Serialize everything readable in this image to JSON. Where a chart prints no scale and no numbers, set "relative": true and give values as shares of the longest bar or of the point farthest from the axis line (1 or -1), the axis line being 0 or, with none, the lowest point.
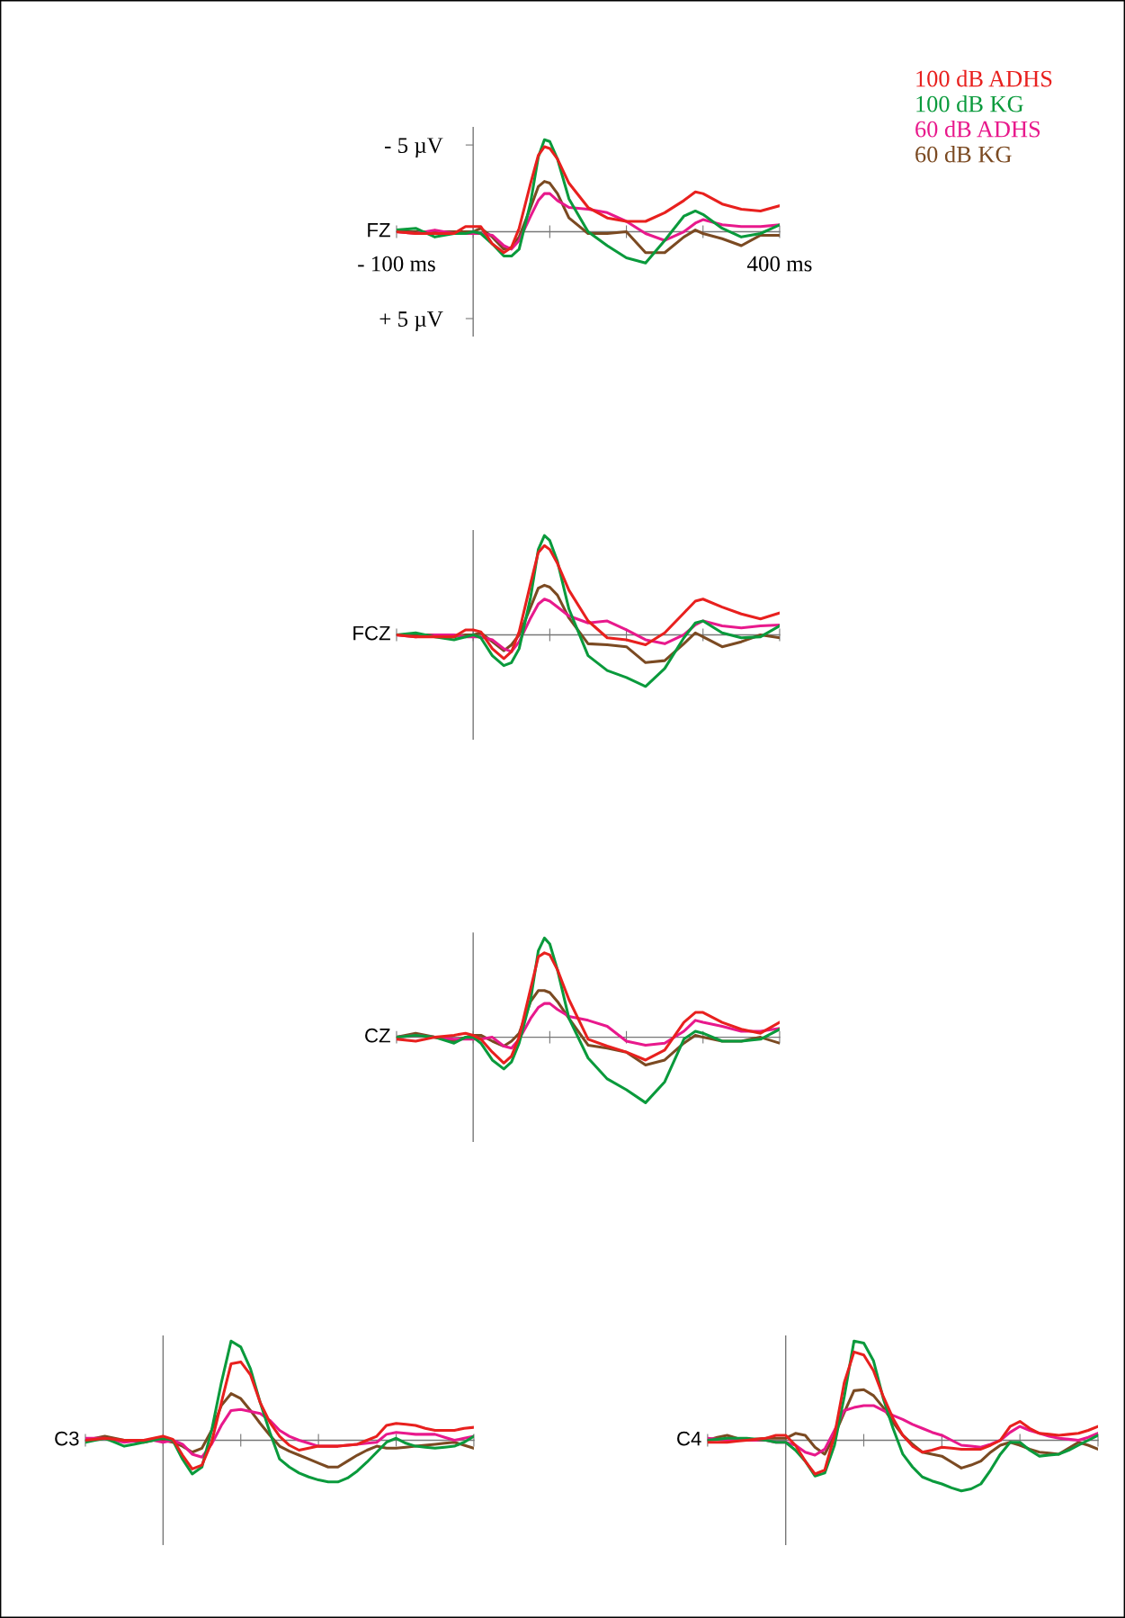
{
  "chart_data": [
    {
      "type": "line",
      "annotations": [
        "FZ"
      ],
      "legend": "top right",
      "x": [
        -100,
        -75,
        -50,
        -25,
        -10,
        0,
        10,
        25,
        40,
        50,
        60,
        75,
        85,
        93,
        100,
        110,
        125,
        150,
        175,
        200,
        225,
        250,
        275,
        290,
        300,
        325,
        350,
        375,
        400
      ],
      "xlim": [
        -100,
        400
      ],
      "ylim": [
        6,
        -6
      ],
      "xticks": [
        {
          "value": -100,
          "label": "- 100 ms"
        },
        {
          "value": 0,
          "label": null
        },
        {
          "value": 100,
          "label": null
        },
        {
          "value": 200,
          "label": null
        },
        {
          "value": 300,
          "label": null
        },
        {
          "value": 400,
          "label": "400 ms"
        }
      ],
      "yticks": [
        {
          "value": -5,
          "label": "- 5 µV"
        },
        {
          "value": 5,
          "label": "+ 5 µV"
        }
      ],
      "series": [
        {
          "name": "100 dB ADHS",
          "color": "#e8201e",
          "values": [
            0,
            0.1,
            0.1,
            0.1,
            -0.3,
            -0.3,
            -0.3,
            0.7,
            1.2,
            0.9,
            -0.2,
            -2.8,
            -4.4,
            -4.9,
            -4.8,
            -4.2,
            -2.8,
            -1.4,
            -0.8,
            -0.6,
            -0.6,
            -1.1,
            -1.8,
            -2.3,
            -2.2,
            -1.6,
            -1.3,
            -1.2,
            -1.5
          ]
        },
        {
          "name": "100 dB KG",
          "color": "#0a9a3c",
          "values": [
            -0.1,
            -0.2,
            0.3,
            0.1,
            0.1,
            0,
            0.1,
            0.7,
            1.4,
            1.4,
            1.0,
            -1.7,
            -4.3,
            -5.3,
            -5.2,
            -4.2,
            -1.9,
            0,
            0.8,
            1.5,
            1.8,
            0.5,
            -0.9,
            -1.2,
            -1.0,
            -0.2,
            0.3,
            0.1,
            -0.4
          ]
        },
        {
          "name": "60 dB ADHS",
          "color": "#e8198c",
          "values": [
            0,
            0.1,
            -0.1,
            0.1,
            0.1,
            0.1,
            0.1,
            0.2,
            0.8,
            1.0,
            0.5,
            -0.9,
            -1.8,
            -2.2,
            -2.2,
            -1.8,
            -1.4,
            -1.3,
            -1.1,
            -0.6,
            0.1,
            0.5,
            0,
            -0.5,
            -0.7,
            -0.4,
            -0.3,
            -0.3,
            -0.4
          ]
        },
        {
          "name": "60 dB KG",
          "color": "#7b4a22",
          "values": [
            0,
            0,
            0,
            0,
            0,
            0,
            -0.2,
            0.3,
            1.0,
            0.9,
            0.3,
            -1.4,
            -2.6,
            -2.9,
            -2.8,
            -2.2,
            -0.8,
            0.1,
            0.1,
            0,
            1.2,
            1.2,
            0.3,
            -0.1,
            0.1,
            0.4,
            0.8,
            0.2,
            0.2
          ]
        }
      ]
    },
    {
      "type": "line",
      "annotations": [
        "FCZ"
      ],
      "relative": true,
      "tick_labels": false,
      "x": [
        -100,
        -75,
        -50,
        -25,
        -10,
        0,
        10,
        25,
        40,
        50,
        60,
        75,
        85,
        93,
        100,
        110,
        125,
        150,
        175,
        200,
        225,
        250,
        275,
        290,
        300,
        325,
        350,
        375,
        400
      ],
      "xlim": [
        -100,
        400
      ],
      "xticks": [
        -100,
        0,
        100,
        200,
        300,
        400
      ],
      "series": [
        {
          "color": "#e8201e",
          "values": [
            0,
            -0.02,
            -0.02,
            -0.02,
            0.05,
            0.05,
            0.03,
            -0.14,
            -0.24,
            -0.17,
            0.03,
            0.52,
            0.83,
            0.9,
            0.86,
            0.72,
            0.45,
            0.14,
            -0.03,
            -0.05,
            -0.1,
            0.02,
            0.22,
            0.34,
            0.36,
            0.28,
            0.21,
            0.16,
            0.22
          ]
        },
        {
          "color": "#0a9a3c",
          "values": [
            0,
            0.02,
            -0.02,
            -0.05,
            -0.02,
            0,
            -0.03,
            -0.21,
            -0.31,
            -0.28,
            -0.14,
            0.38,
            0.86,
            1,
            0.95,
            0.74,
            0.26,
            -0.21,
            -0.36,
            -0.43,
            -0.52,
            -0.34,
            -0.03,
            0.12,
            0.14,
            0.02,
            -0.03,
            -0.02,
            0.09
          ]
        },
        {
          "color": "#e8198c",
          "values": [
            0,
            -0.02,
            0,
            0,
            -0.02,
            -0.02,
            -0.02,
            -0.05,
            -0.14,
            -0.17,
            -0.07,
            0.17,
            0.31,
            0.36,
            0.34,
            0.28,
            0.19,
            0.12,
            0.14,
            0.05,
            -0.05,
            -0.09,
            0,
            0.1,
            0.14,
            0.09,
            0.07,
            0.09,
            0.1
          ]
        },
        {
          "color": "#7b4a22",
          "values": [
            0,
            0,
            0,
            -0.02,
            0,
            0,
            0.02,
            -0.07,
            -0.16,
            -0.1,
            0,
            0.28,
            0.47,
            0.5,
            0.48,
            0.4,
            0.17,
            -0.09,
            -0.1,
            -0.12,
            -0.28,
            -0.26,
            -0.09,
            0.02,
            -0.02,
            -0.12,
            -0.07,
            0,
            -0.03
          ]
        }
      ]
    },
    {
      "type": "line",
      "annotations": [
        "CZ"
      ],
      "relative": true,
      "tick_labels": false,
      "x": [
        -100,
        -75,
        -50,
        -25,
        -10,
        0,
        10,
        25,
        40,
        50,
        60,
        75,
        85,
        93,
        100,
        110,
        125,
        150,
        175,
        200,
        225,
        250,
        275,
        290,
        300,
        325,
        350,
        375,
        400
      ],
      "xlim": [
        -100,
        400
      ],
      "xticks": [
        -100,
        0,
        100,
        200,
        300,
        400
      ],
      "series": [
        {
          "color": "#e8201e",
          "values": [
            -0.02,
            -0.04,
            0,
            0.02,
            0.04,
            0.02,
            -0.02,
            -0.15,
            -0.26,
            -0.19,
            0,
            0.49,
            0.81,
            0.85,
            0.83,
            0.68,
            0.38,
            -0.02,
            -0.09,
            -0.15,
            -0.23,
            -0.13,
            0.15,
            0.25,
            0.25,
            0.15,
            0.08,
            0.04,
            0.15
          ]
        },
        {
          "color": "#0a9a3c",
          "values": [
            0,
            0.02,
            0,
            -0.06,
            0,
            0,
            -0.06,
            -0.23,
            -0.32,
            -0.25,
            -0.06,
            0.38,
            0.87,
            1,
            0.94,
            0.68,
            0.19,
            -0.21,
            -0.42,
            -0.53,
            -0.66,
            -0.45,
            -0.02,
            0.06,
            0.04,
            -0.04,
            -0.04,
            -0.02,
            0.08
          ]
        },
        {
          "color": "#e8198c",
          "values": [
            0,
            0.02,
            0,
            -0.02,
            -0.02,
            -0.02,
            -0.02,
            0,
            -0.09,
            -0.11,
            -0.02,
            0.19,
            0.3,
            0.34,
            0.34,
            0.28,
            0.21,
            0.17,
            0.11,
            -0.04,
            -0.08,
            -0.06,
            0.06,
            0.17,
            0.15,
            0.11,
            0.06,
            0.06,
            0.09
          ]
        },
        {
          "color": "#7b4a22",
          "values": [
            0,
            0.04,
            0,
            -0.04,
            0,
            0.02,
            0.02,
            -0.04,
            -0.09,
            -0.04,
            0.04,
            0.36,
            0.47,
            0.47,
            0.45,
            0.36,
            0.19,
            -0.08,
            -0.11,
            -0.15,
            -0.28,
            -0.23,
            -0.06,
            0.02,
            0,
            -0.04,
            -0.04,
            0,
            -0.06
          ]
        }
      ]
    },
    {
      "type": "line",
      "annotations": [
        "C3"
      ],
      "relative": true,
      "tick_labels": false,
      "categories": [
        null,
        null,
        null,
        null,
        null,
        null,
        null,
        null,
        null,
        null,
        null,
        null,
        null,
        null,
        null,
        null,
        null,
        null,
        null,
        null,
        null,
        null,
        null,
        null,
        null,
        null,
        null,
        null,
        null,
        null,
        null,
        null,
        null,
        null,
        null,
        null,
        null,
        null,
        null,
        null,
        null
      ],
      "series": [
        {
          "color": "#e8201e",
          "values": [
            0,
            0.01,
            0.02,
            0.01,
            0,
            0,
            0,
            0.02,
            0.04,
            0.01,
            -0.15,
            -0.29,
            -0.25,
            -0.02,
            0.38,
            0.77,
            0.79,
            0.66,
            0.38,
            0.18,
            0.04,
            -0.05,
            -0.1,
            -0.08,
            -0.06,
            -0.06,
            -0.06,
            -0.05,
            -0.04,
            0,
            0.04,
            0.15,
            0.17,
            0.16,
            0.15,
            0.12,
            0.1,
            0.1,
            0.1,
            0.12,
            0.13
          ]
        },
        {
          "color": "#0a9a3c",
          "values": [
            -0.02,
            0,
            0.02,
            -0.02,
            -0.06,
            -0.04,
            -0.02,
            0,
            0.02,
            0,
            -0.19,
            -0.34,
            -0.27,
            0.1,
            0.58,
            1,
            0.94,
            0.72,
            0.38,
            0.08,
            -0.19,
            -0.27,
            -0.33,
            -0.37,
            -0.4,
            -0.42,
            -0.42,
            -0.38,
            -0.31,
            -0.22,
            -0.12,
            -0.02,
            0.02,
            -0.03,
            -0.06,
            -0.07,
            -0.08,
            -0.07,
            -0.06,
            -0.02,
            0.04
          ]
        },
        {
          "color": "#e8198c",
          "values": [
            0.02,
            0.02,
            0.02,
            0,
            -0.02,
            -0.01,
            0,
            0,
            -0.02,
            0,
            -0.04,
            -0.14,
            -0.17,
            -0.04,
            0.15,
            0.3,
            0.31,
            0.29,
            0.27,
            0.2,
            0.1,
            0.04,
            0,
            -0.03,
            -0.06,
            -0.06,
            -0.06,
            -0.05,
            -0.04,
            -0.03,
            -0.02,
            0.06,
            0.08,
            0.07,
            0.06,
            0.06,
            0.06,
            0.03,
            0,
            0.02,
            0.04
          ]
        },
        {
          "color": "#7b4a22",
          "values": [
            0,
            0.02,
            0.04,
            0.02,
            0,
            -0.01,
            -0.02,
            0,
            0,
            -0.02,
            -0.06,
            -0.12,
            -0.08,
            0.1,
            0.35,
            0.47,
            0.42,
            0.3,
            0.17,
            0.05,
            -0.06,
            -0.11,
            -0.15,
            -0.19,
            -0.23,
            -0.27,
            -0.27,
            -0.21,
            -0.15,
            -0.1,
            -0.06,
            -0.08,
            -0.08,
            -0.07,
            -0.06,
            -0.05,
            -0.04,
            -0.03,
            -0.02,
            -0.05,
            -0.08
          ]
        }
      ]
    },
    {
      "type": "line",
      "annotations": [
        "C4"
      ],
      "relative": true,
      "tick_labels": false,
      "categories": [
        null,
        null,
        null,
        null,
        null,
        null,
        null,
        null,
        null,
        null,
        null,
        null,
        null,
        null,
        null,
        null,
        null,
        null,
        null,
        null,
        null,
        null,
        null,
        null,
        null,
        null,
        null,
        null,
        null,
        null,
        null,
        null,
        null,
        null,
        null,
        null,
        null,
        null,
        null,
        null,
        null
      ],
      "series": [
        {
          "color": "#e8201e",
          "values": [
            -0.02,
            -0.02,
            -0.02,
            -0.01,
            0,
            0.01,
            0.02,
            0.05,
            0.05,
            -0.05,
            -0.21,
            -0.34,
            -0.3,
            0.05,
            0.58,
            0.89,
            0.86,
            0.7,
            0.44,
            0.22,
            0.05,
            -0.06,
            -0.12,
            -0.1,
            -0.07,
            -0.08,
            -0.09,
            -0.09,
            -0.09,
            -0.05,
            0,
            0.14,
            0.19,
            0.12,
            0.07,
            0.06,
            0.05,
            0.06,
            0.07,
            0.1,
            0.14
          ]
        },
        {
          "color": "#0a9a3c",
          "values": [
            0,
            0.01,
            0.02,
            0.02,
            0.02,
            0.01,
            0,
            -0.02,
            -0.02,
            -0.1,
            -0.21,
            -0.36,
            -0.33,
            -0.05,
            0.44,
            1,
            0.98,
            0.8,
            0.42,
            0.12,
            -0.14,
            -0.27,
            -0.37,
            -0.41,
            -0.44,
            -0.48,
            -0.51,
            -0.49,
            -0.44,
            -0.3,
            -0.14,
            -0.02,
            -0.02,
            -0.1,
            -0.16,
            -0.15,
            -0.14,
            -0.1,
            -0.05,
            0,
            0.05
          ]
        },
        {
          "color": "#e8198c",
          "values": [
            0.02,
            0.01,
            0,
            0,
            0,
            0,
            0,
            -0.02,
            -0.02,
            -0.05,
            -0.12,
            -0.15,
            -0.09,
            0.1,
            0.3,
            0.33,
            0.35,
            0.35,
            0.3,
            0.25,
            0.21,
            0.16,
            0.12,
            0.08,
            0.05,
            0,
            -0.05,
            -0.06,
            -0.07,
            -0.04,
            0,
            0.08,
            0.14,
            0.1,
            0.07,
            0.04,
            0.02,
            0.01,
            0,
            0.03,
            0.07
          ]
        },
        {
          "color": "#7b4a22",
          "values": [
            0,
            0.03,
            0.05,
            0.02,
            0,
            0.01,
            0.02,
            0.02,
            0.02,
            0.07,
            0.05,
            -0.07,
            -0.14,
            0.05,
            0.28,
            0.5,
            0.51,
            0.45,
            0.33,
            0.18,
            0.05,
            -0.04,
            -0.12,
            -0.14,
            -0.16,
            -0.22,
            -0.28,
            -0.25,
            -0.21,
            -0.12,
            -0.05,
            -0.02,
            -0.05,
            -0.09,
            -0.12,
            -0.13,
            -0.14,
            -0.08,
            -0.02,
            -0.05,
            -0.09
          ]
        }
      ]
    }
  ]
}
